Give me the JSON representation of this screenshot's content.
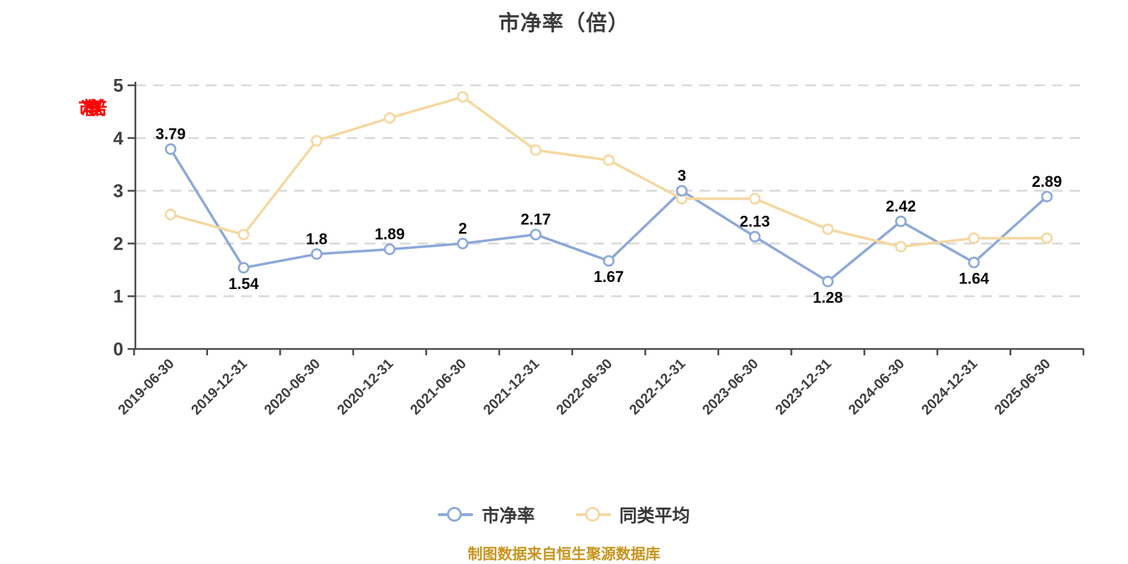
{
  "title": "市净率（倍）",
  "y_axis_name": "市净率（倍）",
  "caption": "制图数据来自恒生聚源数据库",
  "legend": [
    {
      "label": "市净率",
      "color": "#8CA9D9"
    },
    {
      "label": "同类平均",
      "color": "#F5D8A0"
    }
  ],
  "chart_data": {
    "type": "line",
    "title": "市净率（倍）",
    "categories": [
      "2019-06-30",
      "2019-12-31",
      "2020-06-30",
      "2020-12-31",
      "2021-06-30",
      "2021-12-31",
      "2022-06-30",
      "2022-12-31",
      "2023-06-30",
      "2023-12-31",
      "2024-06-30",
      "2024-12-31",
      "2025-06-30"
    ],
    "y_ticks": [
      0,
      1,
      2,
      3,
      4,
      5
    ],
    "ylim": [
      0,
      5
    ],
    "grid": "horizontal-dashed",
    "legend_position": "bottom",
    "colors": {
      "grid": "#d9d9d9",
      "axis": "#4a4a4a",
      "tick_label": "#3f3f3f",
      "data_label": "#060606"
    },
    "series": [
      {
        "name": "市净率",
        "color": "#8CA9D9",
        "values": [
          3.79,
          1.54,
          1.8,
          1.89,
          2,
          2.17,
          1.67,
          3,
          2.13,
          1.28,
          2.42,
          1.64,
          2.89
        ],
        "labels": [
          "3.79",
          "1.54",
          "1.8",
          "1.89",
          "2",
          "2.17",
          "1.67",
          "3",
          "2.13",
          "1.28",
          "2.42",
          "1.64",
          "2.89"
        ],
        "label_positions": [
          "above",
          "below",
          "above",
          "above",
          "above",
          "above",
          "below",
          "above",
          "above",
          "below",
          "above",
          "below",
          "above"
        ]
      },
      {
        "name": "同类平均",
        "color": "#F5D8A0",
        "values": [
          2.55,
          2.17,
          3.95,
          4.38,
          4.78,
          3.77,
          3.58,
          2.85,
          2.85,
          2.27,
          1.94,
          2.1,
          2.1
        ],
        "labels": [],
        "label_positions": []
      }
    ]
  }
}
